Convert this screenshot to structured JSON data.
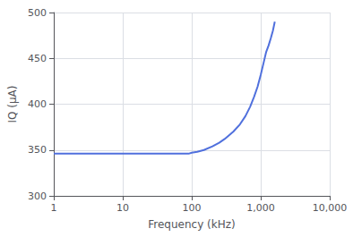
{
  "chart_data": {
    "type": "line",
    "xlabel": "Frequency (kHz)",
    "ylabel": "IQ (μA)",
    "x": [
      1,
      2,
      3,
      4,
      5,
      6,
      7,
      8,
      9,
      10,
      20,
      30,
      40,
      50,
      60,
      70,
      80,
      90,
      100,
      120,
      150,
      200,
      250,
      300,
      400,
      500,
      600,
      700,
      800,
      900,
      1000,
      1100,
      1200,
      1300,
      1400,
      1500,
      1600
    ],
    "values": [
      346,
      346,
      346,
      346,
      346,
      346,
      346,
      346,
      346,
      346,
      346,
      346,
      346,
      346,
      346,
      346,
      346,
      346,
      347,
      348,
      350,
      354,
      358,
      362,
      370,
      378,
      387,
      397,
      408,
      419,
      432,
      445,
      457,
      464,
      472,
      480,
      490
    ],
    "xlim": [
      1,
      10000
    ],
    "xticks": [
      1,
      10,
      100,
      {
        "value": 1000,
        "label": "1,000"
      },
      {
        "value": 10000,
        "label": "10,000"
      }
    ],
    "ylim": [
      300,
      500
    ],
    "yticks": [
      300,
      350,
      400,
      450,
      500
    ],
    "log": "x",
    "grid": true
  }
}
